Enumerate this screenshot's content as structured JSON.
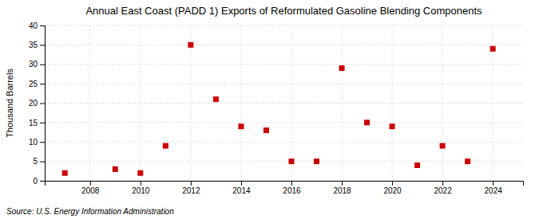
{
  "chart_data": {
    "type": "scatter",
    "title": "Annual East Coast (PADD 1) Exports of Reformulated Gasoline Blending Components",
    "ylabel": "Thousand Barrels",
    "annotations": [
      "Source: U.S. Energy Information Administration"
    ],
    "x": [
      2007,
      2009,
      2010,
      2011,
      2012,
      2013,
      2014,
      2015,
      2016,
      2017,
      2018,
      2019,
      2020,
      2021,
      2022,
      2023,
      2024
    ],
    "values": [
      2,
      3,
      2,
      9,
      35,
      21,
      14,
      13,
      5,
      5,
      29,
      15,
      14,
      4,
      9,
      5,
      34
    ],
    "color": "#cc0000",
    "marker": "square",
    "xlim": [
      2006.2,
      2025.2
    ],
    "xticks": [
      2008,
      2010,
      2012,
      2014,
      2016,
      2018,
      2020,
      2022,
      2024
    ],
    "ylim": [
      0,
      40
    ],
    "yticks": [
      0,
      5,
      10,
      15,
      20,
      25,
      30,
      35,
      40
    ],
    "grid": true
  }
}
